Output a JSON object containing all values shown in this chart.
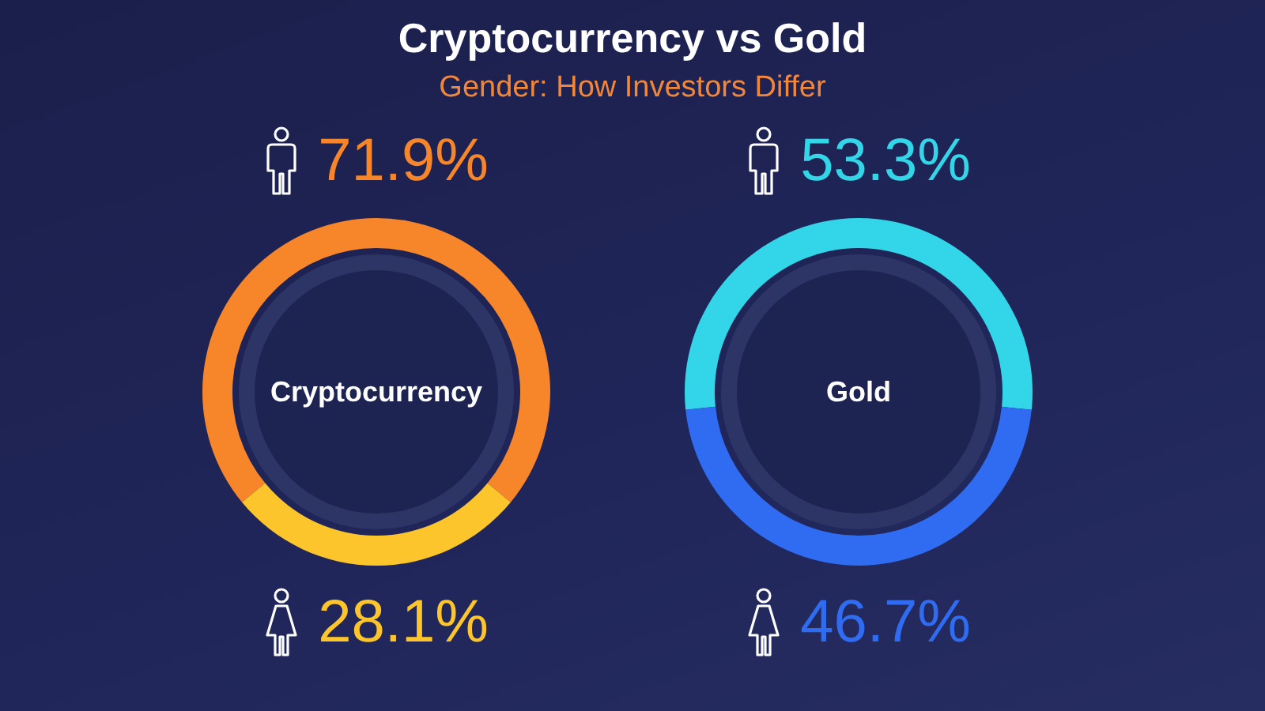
{
  "chart_data": [
    {
      "type": "donut",
      "title": "Cryptocurrency vs Gold",
      "subtitle": "Gender: How Investors Differ",
      "annotations": [
        "Cryptocurrency"
      ],
      "categories": [
        null,
        null
      ],
      "values": [
        71.9,
        28.1
      ],
      "colors": [
        "#f7862b",
        "#fcc52c"
      ],
      "value_labels": [
        "71.9%",
        "28.1%"
      ]
    },
    {
      "type": "donut",
      "annotations": [
        "Gold"
      ],
      "categories": [
        null,
        null
      ],
      "values": [
        53.3,
        46.7
      ],
      "colors": [
        "#33d6e8",
        "#2f6cf2"
      ],
      "value_labels": [
        "53.3%",
        "46.7%"
      ]
    }
  ]
}
